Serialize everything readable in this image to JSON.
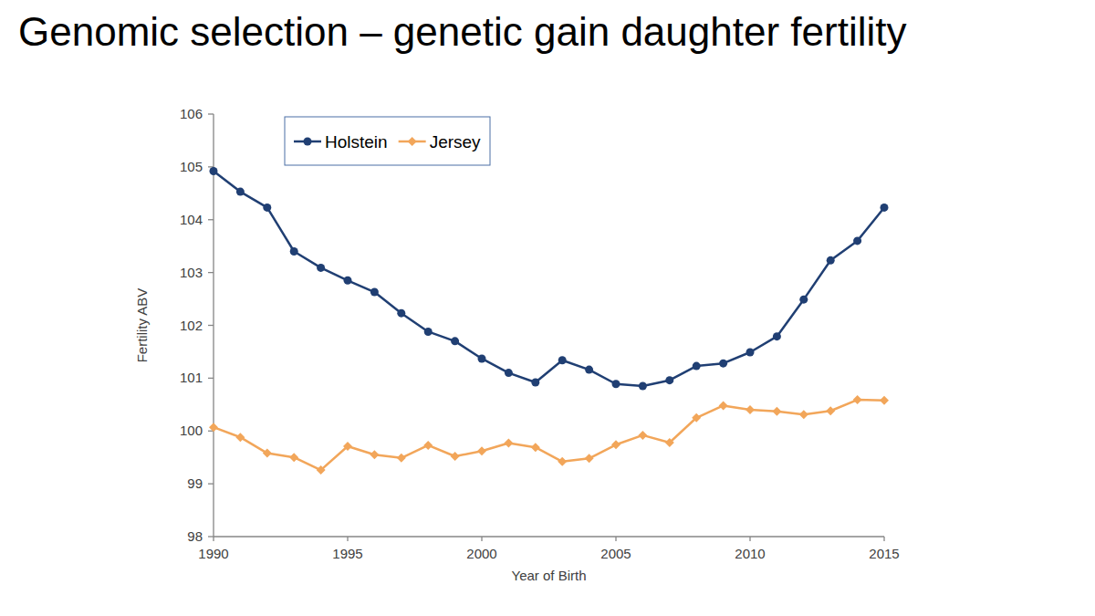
{
  "chart_data": {
    "type": "line",
    "title": "Genomic selection – genetic gain daughter fertility",
    "x_label": "Year of Birth",
    "y_label": "Fertility ABV",
    "x": [
      1990,
      1991,
      1992,
      1993,
      1994,
      1995,
      1996,
      1997,
      1998,
      1999,
      2000,
      2001,
      2002,
      2003,
      2004,
      2005,
      2006,
      2007,
      2008,
      2009,
      2010,
      2011,
      2012,
      2013,
      2014,
      2015
    ],
    "series": [
      {
        "name": "Holstein",
        "color": "#203f73",
        "marker": "circle",
        "line_style": "solid",
        "values": [
          104.92,
          104.53,
          104.23,
          103.4,
          103.09,
          102.85,
          102.63,
          102.23,
          101.88,
          101.7,
          101.37,
          101.1,
          100.92,
          101.34,
          101.16,
          100.89,
          100.85,
          100.96,
          101.23,
          101.28,
          101.49,
          101.79,
          102.49,
          103.23,
          103.6,
          104.23
        ]
      },
      {
        "name": "Jersey",
        "color": "#f2a65a",
        "marker": "diamond",
        "line_style": "solid",
        "values": [
          100.07,
          99.88,
          99.58,
          99.5,
          99.26,
          99.71,
          99.55,
          99.49,
          99.73,
          99.52,
          99.62,
          99.77,
          99.69,
          99.42,
          99.48,
          99.74,
          99.92,
          99.78,
          100.25,
          100.48,
          100.4,
          100.37,
          100.31,
          100.38,
          100.59,
          100.58
        ]
      }
    ],
    "xlim": [
      1990,
      2015
    ],
    "xticks": [
      1990,
      1995,
      2000,
      2005,
      2010,
      2015
    ],
    "ylim": [
      98,
      106
    ],
    "yticks": [
      98,
      99,
      100,
      101,
      102,
      103,
      104,
      105,
      106
    ],
    "grid": false,
    "legend": "top-left"
  }
}
